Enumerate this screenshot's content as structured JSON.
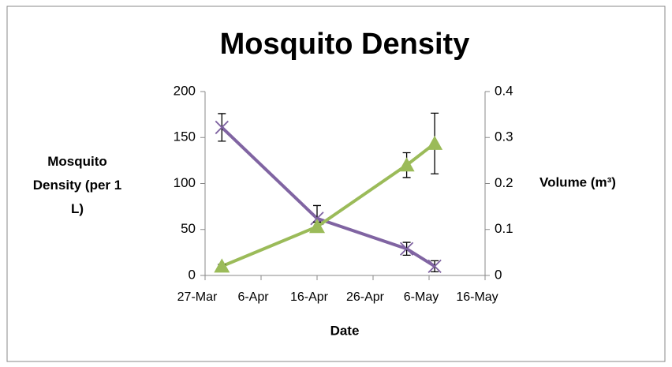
{
  "chart_data": {
    "type": "line",
    "title": "Mosquito Density",
    "xlabel": "Date",
    "ylabel": "Mosquito Density (per 1 L)",
    "y2label": "Volume (m³)",
    "xlim": [
      "27-Mar",
      "16-May"
    ],
    "xticks": [
      "27-Mar",
      "6-Apr",
      "16-Apr",
      "26-Apr",
      "6-May",
      "16-May"
    ],
    "ylim": [
      0,
      200
    ],
    "yticks": [
      0,
      50,
      100,
      150,
      200
    ],
    "y2lim": [
      0,
      0.4
    ],
    "y2ticks": [
      0,
      0.1,
      0.2,
      0.3,
      0.4
    ],
    "series": [
      {
        "name": "Mosquito Density",
        "color": "#8064a2",
        "marker": "x",
        "x": [
          "30-Mar",
          "16-Apr",
          "2-May",
          "7-May"
        ],
        "values": [
          161,
          62,
          29,
          10
        ],
        "errors": [
          15,
          14,
          7,
          6
        ]
      },
      {
        "name": "Volume",
        "color": "#9bbb59",
        "marker": "triangle",
        "axis": "y2",
        "x": [
          "30-Mar",
          "16-Apr",
          "2-May",
          "7-May"
        ],
        "values": [
          0.02,
          0.106,
          0.24,
          0.287
        ],
        "errors": [
          0.004,
          0.01,
          0.027,
          0.066
        ]
      }
    ]
  }
}
